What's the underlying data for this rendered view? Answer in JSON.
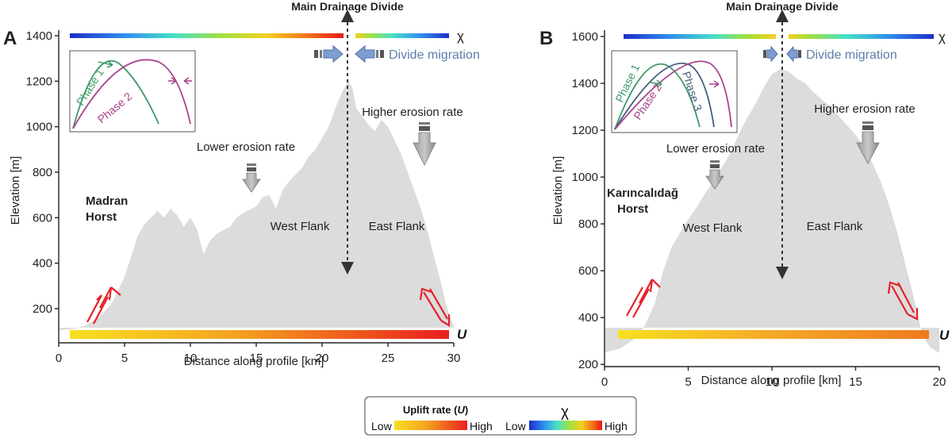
{
  "panel_a": {
    "letter": "A",
    "divide_label": "Main Drainage Divide",
    "chi_symbol": "χ",
    "divide_migration": "Divide migration",
    "lower_erosion": "Lower erosion rate",
    "higher_erosion": "Higher erosion rate",
    "horst": "Madran\nHorst",
    "west_flank": "West Flank",
    "east_flank": "East Flank",
    "u_symbol": "U",
    "phase1": "Phase 1",
    "phase2": "Phase 2",
    "xlabel": "Distance along profile [km]",
    "ylabel": "Elevation [m]",
    "xticks": [
      "0",
      "5",
      "10",
      "15",
      "20",
      "25",
      "30"
    ],
    "yticks": [
      "200",
      "400",
      "600",
      "800",
      "1000",
      "1200",
      "1400"
    ],
    "xlim": [
      0,
      30
    ],
    "ylim": [
      50,
      1400
    ],
    "divide_x_km": 22,
    "profile": [
      [
        0,
        105
      ],
      [
        1,
        110
      ],
      [
        2,
        125
      ],
      [
        3,
        160
      ],
      [
        4,
        220
      ],
      [
        5,
        340
      ],
      [
        5.5,
        430
      ],
      [
        6,
        520
      ],
      [
        6.5,
        570
      ],
      [
        7,
        600
      ],
      [
        7.5,
        630
      ],
      [
        8,
        600
      ],
      [
        8.5,
        640
      ],
      [
        9,
        610
      ],
      [
        9.5,
        560
      ],
      [
        10,
        600
      ],
      [
        10.5,
        550
      ],
      [
        11,
        440
      ],
      [
        11.5,
        500
      ],
      [
        12,
        530
      ],
      [
        13,
        560
      ],
      [
        13.5,
        600
      ],
      [
        14,
        620
      ],
      [
        15,
        650
      ],
      [
        15.5,
        690
      ],
      [
        16,
        700
      ],
      [
        16.5,
        640
      ],
      [
        17,
        720
      ],
      [
        17.5,
        760
      ],
      [
        18,
        790
      ],
      [
        18.5,
        820
      ],
      [
        19,
        870
      ],
      [
        19.5,
        900
      ],
      [
        20,
        950
      ],
      [
        20.5,
        1000
      ],
      [
        21,
        1080
      ],
      [
        21.5,
        1150
      ],
      [
        22,
        1200
      ],
      [
        22.3,
        1170
      ],
      [
        22.6,
        1080
      ],
      [
        23,
        1050
      ],
      [
        23.5,
        1010
      ],
      [
        24,
        980
      ],
      [
        24.5,
        1030
      ],
      [
        25,
        1000
      ],
      [
        25.5,
        940
      ],
      [
        26,
        880
      ],
      [
        26.5,
        800
      ],
      [
        27,
        720
      ],
      [
        27.5,
        640
      ],
      [
        28,
        540
      ],
      [
        28.5,
        430
      ],
      [
        29,
        320
      ],
      [
        29.5,
        200
      ],
      [
        30,
        120
      ]
    ]
  },
  "panel_b": {
    "letter": "B",
    "divide_label": "Main Drainage Divide",
    "chi_symbol": "χ",
    "divide_migration": "Divide migration",
    "lower_erosion": "Lower erosion rate",
    "higher_erosion": "Higher erosion rate",
    "horst": "Karıncalıdağ\nHorst",
    "west_flank": "West Flank",
    "east_flank": "East Flank",
    "u_symbol": "U",
    "phase1": "Phase 1",
    "phase2": "Phase 2",
    "phase3": "Phase 3",
    "xlabel": "Distance along profile [km]",
    "ylabel": "Elevation [m]",
    "xticks": [
      "0",
      "5",
      "10",
      "15",
      "20"
    ],
    "yticks": [
      "200",
      "400",
      "600",
      "800",
      "1000",
      "1200",
      "1400",
      "1600"
    ],
    "xlim": [
      0,
      20
    ],
    "ylim": [
      150,
      1600
    ],
    "divide_x_km": 10.5,
    "profile": [
      [
        0,
        250
      ],
      [
        1,
        270
      ],
      [
        2,
        320
      ],
      [
        2.5,
        380
      ],
      [
        3,
        460
      ],
      [
        3.5,
        600
      ],
      [
        4,
        700
      ],
      [
        4.5,
        760
      ],
      [
        5,
        820
      ],
      [
        5.5,
        870
      ],
      [
        6,
        930
      ],
      [
        6.5,
        980
      ],
      [
        7,
        1040
      ],
      [
        7.5,
        1100
      ],
      [
        8,
        1180
      ],
      [
        8.5,
        1250
      ],
      [
        9,
        1310
      ],
      [
        9.5,
        1380
      ],
      [
        10,
        1440
      ],
      [
        10.5,
        1460
      ],
      [
        11,
        1450
      ],
      [
        11.5,
        1420
      ],
      [
        12,
        1400
      ],
      [
        12.5,
        1360
      ],
      [
        13,
        1330
      ],
      [
        13.5,
        1300
      ],
      [
        14,
        1260
      ],
      [
        14.5,
        1220
      ],
      [
        15,
        1180
      ],
      [
        15.5,
        1130
      ],
      [
        16,
        1060
      ],
      [
        16.5,
        980
      ],
      [
        17,
        880
      ],
      [
        17.5,
        760
      ],
      [
        18,
        620
      ],
      [
        18.5,
        480
      ],
      [
        19,
        320
      ],
      [
        19.5,
        270
      ],
      [
        20,
        250
      ]
    ]
  },
  "legend": {
    "uplift_title": "Uplift rate (U)",
    "uplift_low": "Low",
    "uplift_high": "High",
    "chi_symbol": "χ",
    "chi_low": "Low",
    "chi_high": "High"
  },
  "colors": {
    "terrain": "#dcdcdc",
    "phase1": "#3f9a6a",
    "phase2": "#a8428c",
    "phase3": "#445e7d",
    "fault": "#e8202a",
    "migration_text": "#5a7fa8"
  }
}
